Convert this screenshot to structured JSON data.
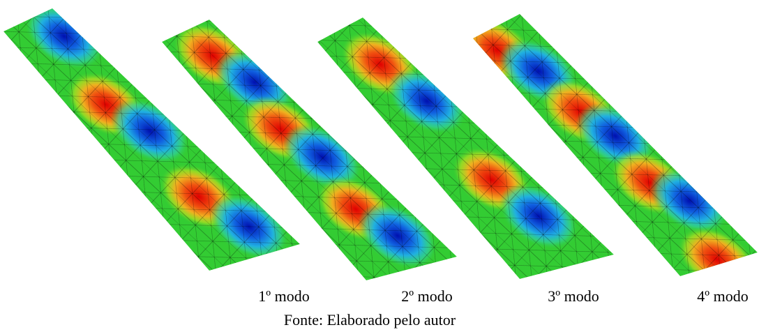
{
  "figure": {
    "captions": [
      "1º modo",
      "2º modo",
      "3º modo",
      "4º modo"
    ],
    "source": "Fonte: Elaborado pelo autor"
  }
}
